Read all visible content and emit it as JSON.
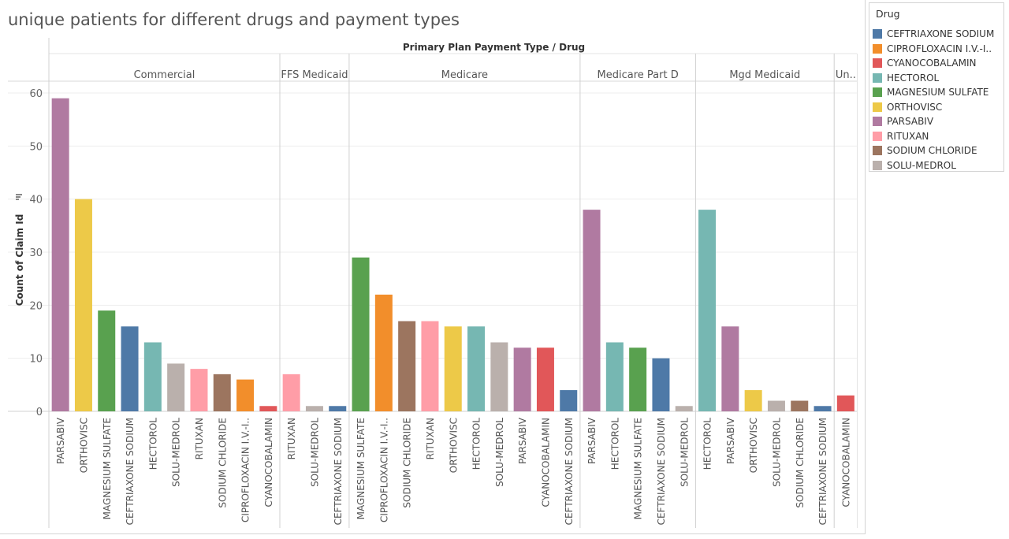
{
  "title": "unique patients for different drugs and payment types",
  "chart_data": {
    "type": "bar",
    "header": "Primary Plan Payment Type  /  Drug",
    "ylabel": "Count of Claim Id",
    "ylim": [
      0,
      60
    ],
    "yticks": [
      0,
      10,
      20,
      30,
      40,
      50,
      60
    ],
    "grid": true,
    "legend_position": "right",
    "groups": [
      {
        "name": "Commercial",
        "bars": [
          {
            "drug": "PARSABIV",
            "label": "PARSABIV",
            "value": 59
          },
          {
            "drug": "ORTHOVISC",
            "label": "ORTHOVISC",
            "value": 40
          },
          {
            "drug": "MAGNESIUM SULFATE",
            "label": "MAGNESIUM SULFATE",
            "value": 19
          },
          {
            "drug": "CEFTRIAXONE SODIUM",
            "label": "CEFTRIAXONE SODIUM",
            "value": 16
          },
          {
            "drug": "HECTOROL",
            "label": "HECTOROL",
            "value": 13
          },
          {
            "drug": "SOLU-MEDROL",
            "label": "SOLU-MEDROL",
            "value": 9
          },
          {
            "drug": "RITUXAN",
            "label": "RITUXAN",
            "value": 8
          },
          {
            "drug": "SODIUM CHLORIDE",
            "label": "SODIUM CHLORIDE",
            "value": 7
          },
          {
            "drug": "CIPROFLOXACIN I.V.-I..",
            "label": "CIPROFLOXACIN I.V.-I..",
            "value": 6
          },
          {
            "drug": "CYANOCOBALAMIN",
            "label": "CYANOCOBALAMIN",
            "value": 1
          }
        ]
      },
      {
        "name": "FFS Medicaid",
        "bars": [
          {
            "drug": "RITUXAN",
            "label": "RITUXAN",
            "value": 7
          },
          {
            "drug": "SOLU-MEDROL",
            "label": "SOLU-MEDROL",
            "value": 1
          },
          {
            "drug": "CEFTRIAXONE SODIUM",
            "label": "CEFTRIAXONE SODIUM",
            "value": 1
          }
        ]
      },
      {
        "name": "Medicare",
        "bars": [
          {
            "drug": "MAGNESIUM SULFATE",
            "label": "MAGNESIUM SULFATE",
            "value": 29
          },
          {
            "drug": "CIPROFLOXACIN I.V.-I..",
            "label": "CIPROFLOXACIN I.V.-I..",
            "value": 22
          },
          {
            "drug": "SODIUM CHLORIDE",
            "label": "SODIUM CHLORIDE",
            "value": 17
          },
          {
            "drug": "RITUXAN",
            "label": "RITUXAN",
            "value": 17
          },
          {
            "drug": "ORTHOVISC",
            "label": "ORTHOVISC",
            "value": 16
          },
          {
            "drug": "HECTOROL",
            "label": "HECTOROL",
            "value": 16
          },
          {
            "drug": "SOLU-MEDROL",
            "label": "SOLU-MEDROL",
            "value": 13
          },
          {
            "drug": "PARSABIV",
            "label": "PARSABIV",
            "value": 12
          },
          {
            "drug": "CYANOCOBALAMIN",
            "label": "CYANOCOBALAMIN",
            "value": 12
          },
          {
            "drug": "CEFTRIAXONE SODIUM",
            "label": "CEFTRIAXONE SODIUM",
            "value": 4
          }
        ]
      },
      {
        "name": "Medicare Part D",
        "bars": [
          {
            "drug": "PARSABIV",
            "label": "PARSABIV",
            "value": 38
          },
          {
            "drug": "HECTOROL",
            "label": "HECTOROL",
            "value": 13
          },
          {
            "drug": "MAGNESIUM SULFATE",
            "label": "MAGNESIUM SULFATE",
            "value": 12
          },
          {
            "drug": "CEFTRIAXONE SODIUM",
            "label": "CEFTRIAXONE SODIUM",
            "value": 10
          },
          {
            "drug": "SOLU-MEDROL",
            "label": "SOLU-MEDROL",
            "value": 1
          }
        ]
      },
      {
        "name": "Mgd Medicaid",
        "bars": [
          {
            "drug": "HECTOROL",
            "label": "HECTOROL",
            "value": 38
          },
          {
            "drug": "PARSABIV",
            "label": "PARSABIV",
            "value": 16
          },
          {
            "drug": "ORTHOVISC",
            "label": "ORTHOVISC",
            "value": 4
          },
          {
            "drug": "SOLU-MEDROL",
            "label": "SOLU-MEDROL",
            "value": 2
          },
          {
            "drug": "SODIUM CHLORIDE",
            "label": "SODIUM CHLORIDE",
            "value": 2
          },
          {
            "drug": "CEFTRIAXONE SODIUM",
            "label": "CEFTRIAXONE SODIUM",
            "value": 1
          }
        ]
      },
      {
        "name": "Un..",
        "bars": [
          {
            "drug": "CYANOCOBALAMIN",
            "label": "CYANOCOBALAMIN",
            "value": 3
          }
        ]
      }
    ]
  },
  "legend": {
    "title": "Drug",
    "items": [
      {
        "label": "CEFTRIAXONE SODIUM",
        "color": "#4e79a7"
      },
      {
        "label": "CIPROFLOXACIN I.V.-I..",
        "color": "#f28e2b"
      },
      {
        "label": "CYANOCOBALAMIN",
        "color": "#e15759"
      },
      {
        "label": "HECTOROL",
        "color": "#76b7b2"
      },
      {
        "label": "MAGNESIUM SULFATE",
        "color": "#59a14f"
      },
      {
        "label": "ORTHOVISC",
        "color": "#edc948"
      },
      {
        "label": "PARSABIV",
        "color": "#b07aa1"
      },
      {
        "label": "RITUXAN",
        "color": "#ff9da7"
      },
      {
        "label": "SODIUM CHLORIDE",
        "color": "#9c755f"
      },
      {
        "label": "SOLU-MEDROL",
        "color": "#bab0ac"
      }
    ]
  }
}
